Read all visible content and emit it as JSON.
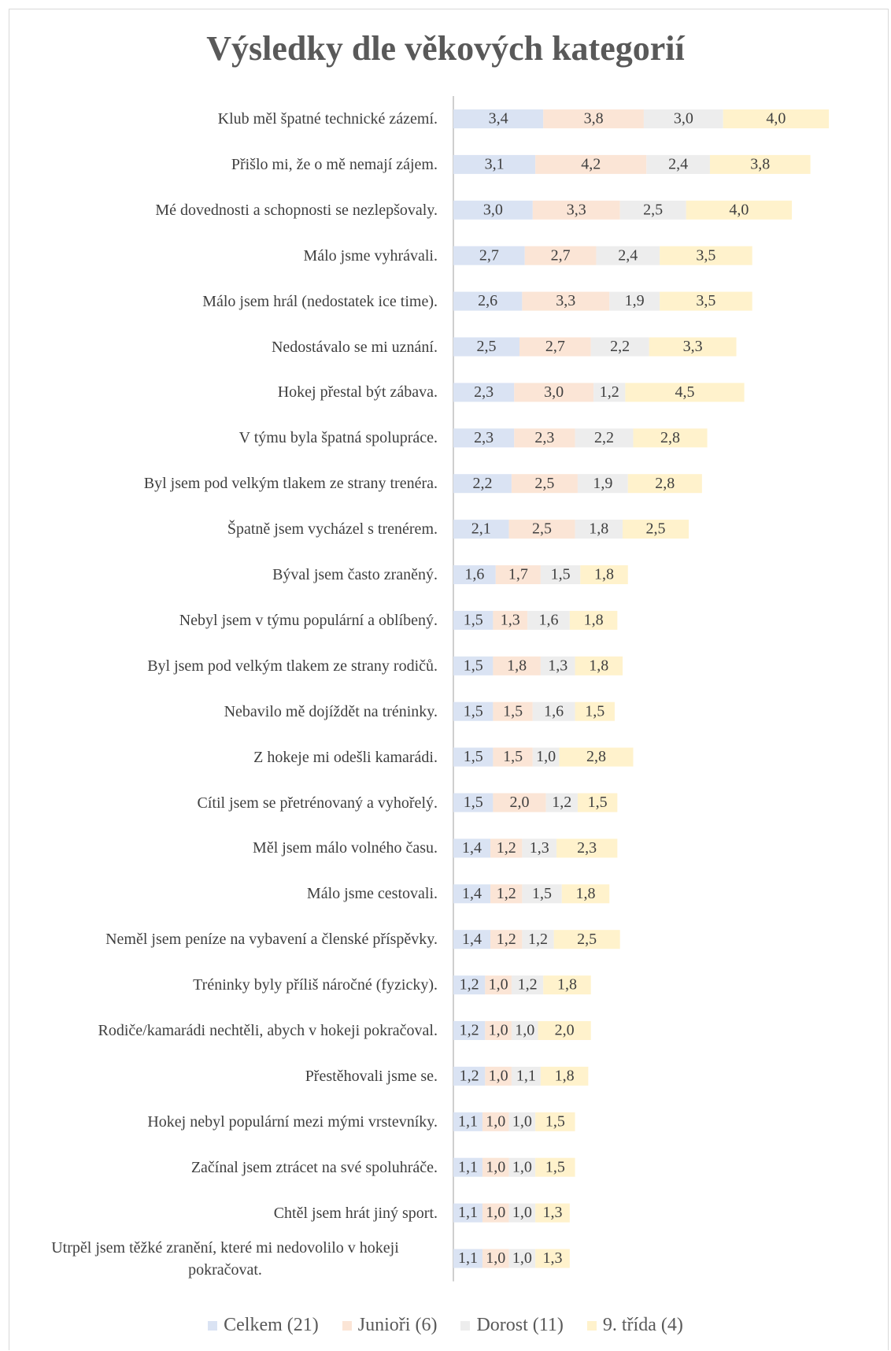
{
  "chart_data": {
    "type": "stacked_bar_horizontal",
    "title": "Výsledky dle věkových kategorií",
    "categories": [
      "Klub měl špatné technické zázemí.",
      "Přišlo mi, že o mě nemají zájem.",
      "Mé dovednosti a schopnosti se nezlepšovaly.",
      "Málo jsme vyhrávali.",
      "Málo jsem hrál (nedostatek ice time).",
      "Nedostávalo se mi uznání.",
      "Hokej přestal být zábava.",
      "V týmu byla špatná spolupráce.",
      "Byl jsem pod velkým tlakem ze strany trenéra.",
      "Špatně jsem vycházel s trenérem.",
      "Býval jsem často zraněný.",
      "Nebyl jsem v týmu populární a oblíbený.",
      "Byl jsem pod velkým tlakem ze strany rodičů.",
      "Nebavilo mě dojíždět na tréninky.",
      "Z hokeje mi odešli kamarádi.",
      "Cítil jsem se přetrénovaný a vyhořelý.",
      "Měl jsem málo volného času.",
      "Málo jsme cestovali.",
      "Neměl jsem peníze na vybavení a členské příspěvky.",
      "Tréninky byly příliš náročné (fyzicky).",
      "Rodiče/kamarádi nechtěli, abych v hokeji pokračoval.",
      "Přestěhovali jsme se.",
      "Hokej nebyl populární mezi mými vrstevníky.",
      "Začínal jsem ztrácet na své spoluhráče.",
      "Chtěl jsem hrát jiný sport.",
      "Utrpěl jsem těžké zranění, které mi nedovolilo v hokeji pokračovat."
    ],
    "series": [
      {
        "name": "Celkem (21)",
        "color": "#dae3f3",
        "values": [
          3.4,
          3.1,
          3.0,
          2.7,
          2.6,
          2.5,
          2.3,
          2.3,
          2.2,
          2.1,
          1.6,
          1.5,
          1.5,
          1.5,
          1.5,
          1.5,
          1.4,
          1.4,
          1.4,
          1.2,
          1.2,
          1.2,
          1.1,
          1.1,
          1.1,
          1.1
        ],
        "value_labels": [
          "3,4",
          "3,1",
          "3,0",
          "2,7",
          "2,6",
          "2,5",
          "2,3",
          "2,3",
          "2,2",
          "2,1",
          "1,6",
          "1,5",
          "1,5",
          "1,5",
          "1,5",
          "1,5",
          "1,4",
          "1,4",
          "1,4",
          "1,2",
          "1,2",
          "1,2",
          "1,1",
          "1,1",
          "1,1",
          "1,1"
        ]
      },
      {
        "name": "Junioři (6)",
        "color": "#fbe5d6",
        "values": [
          3.8,
          4.2,
          3.3,
          2.7,
          3.3,
          2.7,
          3.0,
          2.3,
          2.5,
          2.5,
          1.7,
          1.3,
          1.8,
          1.5,
          1.5,
          2.0,
          1.2,
          1.2,
          1.2,
          1.0,
          1.0,
          1.0,
          1.0,
          1.0,
          1.0,
          1.0
        ],
        "value_labels": [
          "3,8",
          "4,2",
          "3,3",
          "2,7",
          "3,3",
          "2,7",
          "3,0",
          "2,3",
          "2,5",
          "2,5",
          "1,7",
          "1,3",
          "1,8",
          "1,5",
          "1,5",
          "2,0",
          "1,2",
          "1,2",
          "1,2",
          "1,0",
          "1,0",
          "1,0",
          "1,0",
          "1,0",
          "1,0",
          "1,0"
        ]
      },
      {
        "name": "Dorost (11)",
        "color": "#ededed",
        "values": [
          3.0,
          2.4,
          2.5,
          2.4,
          1.9,
          2.2,
          1.2,
          2.2,
          1.9,
          1.8,
          1.5,
          1.6,
          1.3,
          1.6,
          1.0,
          1.2,
          1.3,
          1.5,
          1.2,
          1.2,
          1.0,
          1.1,
          1.0,
          1.0,
          1.0,
          1.0
        ],
        "value_labels": [
          "3,0",
          "2,4",
          "2,5",
          "2,4",
          "1,9",
          "2,2",
          "1,2",
          "2,2",
          "1,9",
          "1,8",
          "1,5",
          "1,6",
          "1,3",
          "1,6",
          "1,0",
          "1,2",
          "1,3",
          "1,5",
          "1,2",
          "1,2",
          "1,0",
          "1,1",
          "1,0",
          "1,0",
          "1,0",
          "1,0"
        ]
      },
      {
        "name": "9. třída (4)",
        "color": "#fff2cc",
        "values": [
          4.0,
          3.8,
          4.0,
          3.5,
          3.5,
          3.3,
          4.5,
          2.8,
          2.8,
          2.5,
          1.8,
          1.8,
          1.8,
          1.5,
          2.8,
          1.5,
          2.3,
          1.8,
          2.5,
          1.8,
          2.0,
          1.8,
          1.5,
          1.5,
          1.3,
          1.3
        ],
        "value_labels": [
          "4,0",
          "3,8",
          "4,0",
          "3,5",
          "3,5",
          "3,3",
          "4,5",
          "2,8",
          "2,8",
          "2,5",
          "1,8",
          "1,8",
          "1,8",
          "1,5",
          "2,8",
          "1,5",
          "2,3",
          "1,8",
          "2,5",
          "1,8",
          "2,0",
          "1,8",
          "1,5",
          "1,5",
          "1,3",
          "1,3"
        ]
      }
    ]
  }
}
